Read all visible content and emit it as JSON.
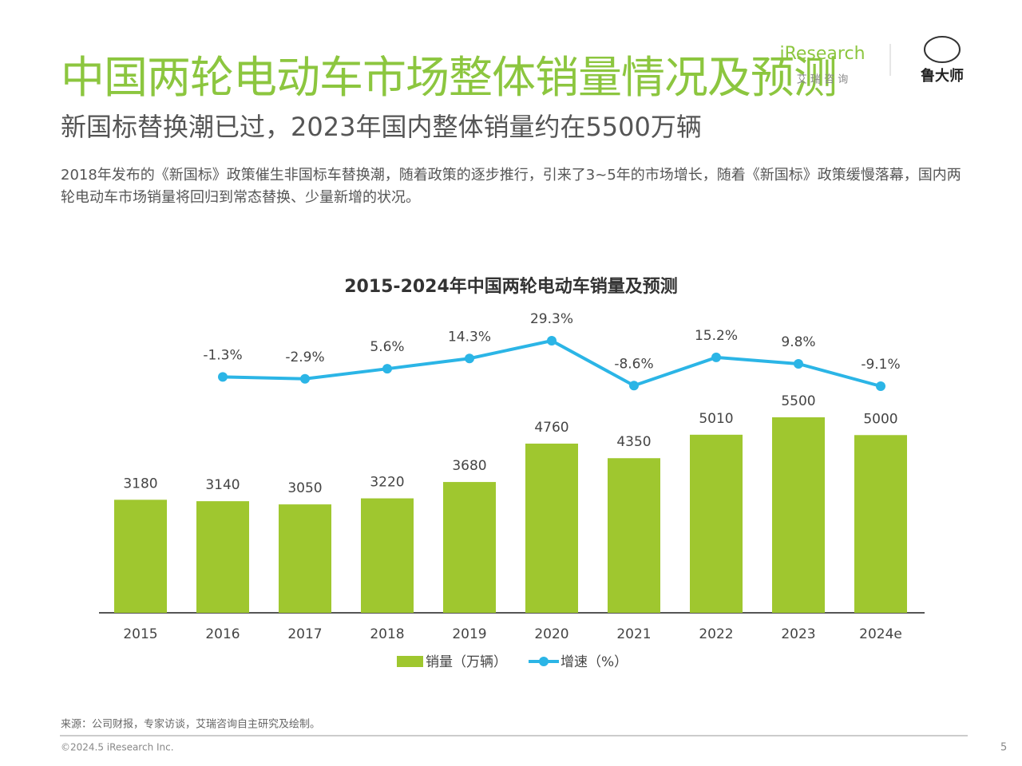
{
  "header": {
    "title": "中国两轮电动车市场整体销量情况及预测",
    "subtitle": "新国标替换潮已过，2023年国内整体销量约在5500万辆",
    "description": "2018年发布的《新国标》政策催生非国标车替换潮，随着政策的逐步推行，引来了3~5年的市场增长，随着《新国标》政策缓慢落幕，国内两轮电动车市场销量将回归到常态替换、少量新增的状况。",
    "logos": {
      "iresearch": "iResearch",
      "iresearch_cn": "艾 瑞 咨 询",
      "ludashi": "鲁大师"
    }
  },
  "chart_data": {
    "type": "bar",
    "title": "2015-2024年中国两轮电动车销量及预测",
    "categories": [
      "2015",
      "2016",
      "2017",
      "2018",
      "2019",
      "2020",
      "2021",
      "2022",
      "2023",
      "2024e"
    ],
    "series": [
      {
        "name": "销量（万辆）",
        "type": "bar",
        "color": "#9fc72f",
        "values": [
          3180,
          3140,
          3050,
          3220,
          3680,
          4760,
          4350,
          5010,
          5500,
          5000
        ]
      },
      {
        "name": "增速（%）",
        "type": "line",
        "color": "#2bb5e6",
        "values": [
          null,
          -1.3,
          -2.9,
          5.6,
          14.3,
          29.3,
          -8.6,
          15.2,
          9.8,
          -9.1
        ],
        "value_labels": [
          null,
          "-1.3%",
          "-2.9%",
          "5.6%",
          "14.3%",
          "29.3%",
          "-8.6%",
          "15.2%",
          "9.8%",
          "-9.1%"
        ]
      }
    ]
  },
  "footer": {
    "source": "来源：公司财报，专家访谈，艾瑞咨询自主研究及绘制。",
    "copyright": "©2024.5 iResearch Inc.",
    "page": "5"
  }
}
